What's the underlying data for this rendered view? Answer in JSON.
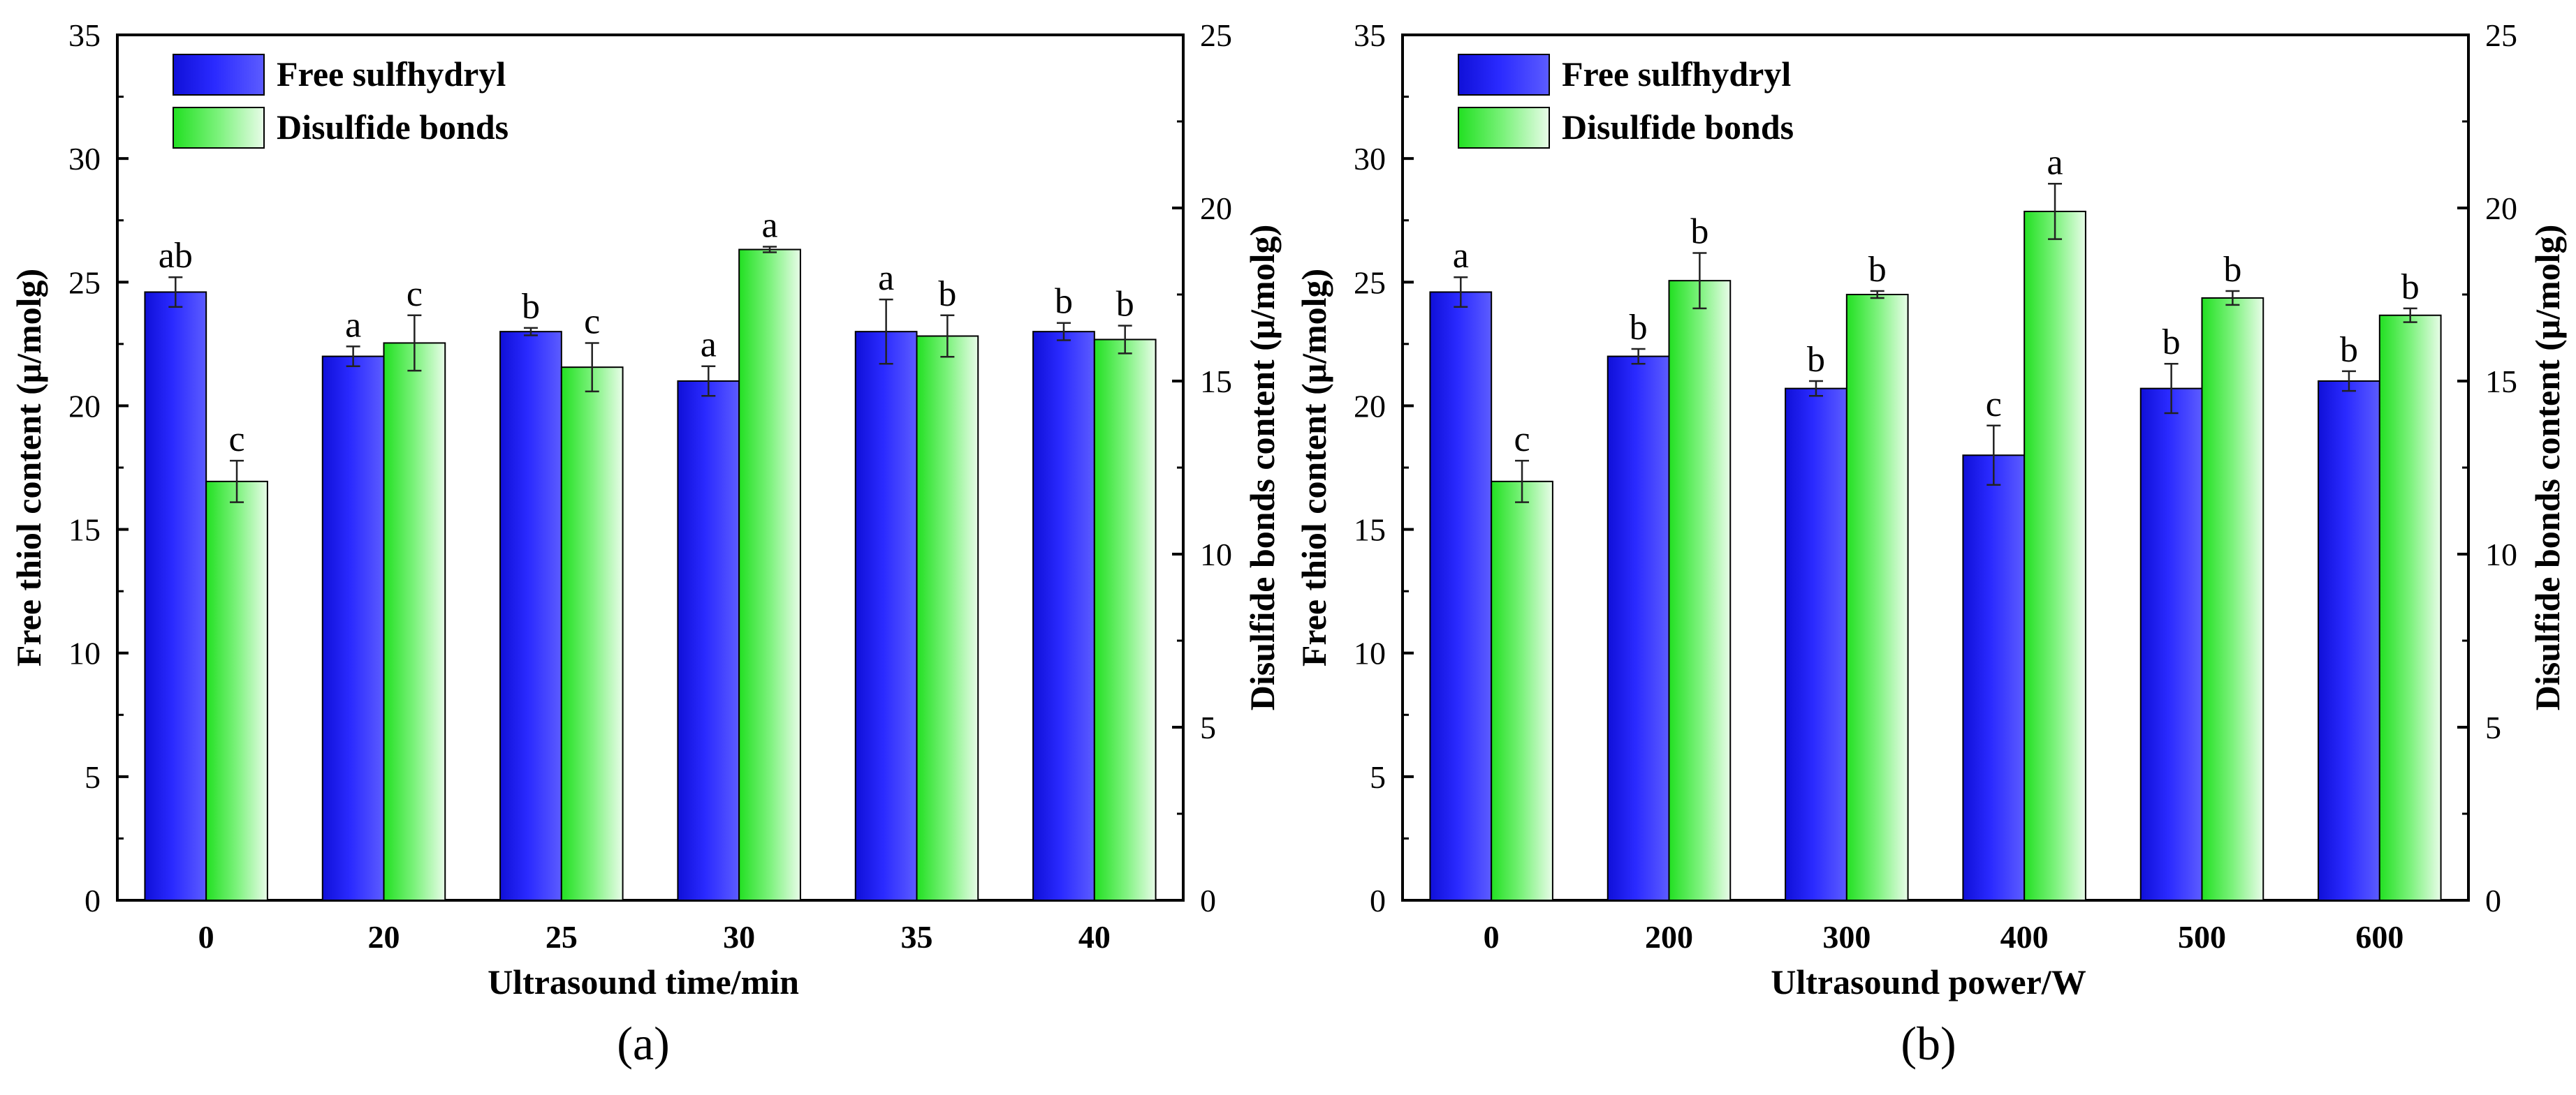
{
  "chart_data": [
    {
      "type": "bar",
      "panel_label": "(a)",
      "xlabel": "Ultrasound time/min",
      "ylabel_left": "Free thiol content (μ/molg)",
      "ylabel_right": "Disulfide bonds content (μ/molg)",
      "ylim_left": [
        0,
        35
      ],
      "ylim_right": [
        0,
        25
      ],
      "yticks_left": [
        "0",
        "5",
        "10",
        "15",
        "20",
        "25",
        "30",
        "35"
      ],
      "yticks_right": [
        "0",
        "5",
        "10",
        "15",
        "20",
        "25"
      ],
      "categories": [
        "0",
        "20",
        "25",
        "30",
        "35",
        "40"
      ],
      "series": [
        {
          "name": "Free sulfhydryl",
          "axis": "left",
          "color": "#1414f0",
          "values": [
            24.6,
            22.0,
            23.0,
            21.0,
            23.0,
            23.0
          ],
          "errors": [
            0.6,
            0.4,
            0.15,
            0.6,
            1.3,
            0.35
          ],
          "letters": [
            "ab",
            "a",
            "b",
            "a",
            "a",
            "b"
          ]
        },
        {
          "name": "Disulfide bonds",
          "axis": "right",
          "color": "#2ee62e",
          "values": [
            12.1,
            16.1,
            15.4,
            18.8,
            16.3,
            16.2
          ],
          "errors": [
            0.6,
            0.8,
            0.7,
            0.08,
            0.6,
            0.4
          ],
          "letters": [
            "c",
            "c",
            "c",
            "a",
            "b",
            "b"
          ]
        }
      ]
    },
    {
      "type": "bar",
      "panel_label": "(b)",
      "xlabel": "Ultrasound power/W",
      "ylabel_left": "Free thiol content (μ/molg)",
      "ylabel_right": "Disulfide bonds content (μ/molg)",
      "ylim_left": [
        0,
        35
      ],
      "ylim_right": [
        0,
        25
      ],
      "yticks_left": [
        "0",
        "5",
        "10",
        "15",
        "20",
        "25",
        "30",
        "35"
      ],
      "yticks_right": [
        "0",
        "5",
        "10",
        "15",
        "20",
        "25"
      ],
      "categories": [
        "0",
        "200",
        "300",
        "400",
        "500",
        "600"
      ],
      "series": [
        {
          "name": "Free sulfhydryl",
          "axis": "left",
          "color": "#1414f0",
          "values": [
            24.6,
            22.0,
            20.7,
            18.0,
            20.7,
            21.0
          ],
          "errors": [
            0.6,
            0.3,
            0.3,
            1.2,
            1.0,
            0.4
          ],
          "letters": [
            "a",
            "b",
            "b",
            "c",
            "b",
            "b"
          ]
        },
        {
          "name": "Disulfide bonds",
          "axis": "right",
          "color": "#2ee62e",
          "values": [
            12.1,
            17.9,
            17.5,
            19.9,
            17.4,
            16.9
          ],
          "errors": [
            0.6,
            0.8,
            0.1,
            0.8,
            0.2,
            0.2
          ],
          "letters": [
            "c",
            "b",
            "b",
            "a",
            "b",
            "b"
          ]
        }
      ]
    }
  ]
}
